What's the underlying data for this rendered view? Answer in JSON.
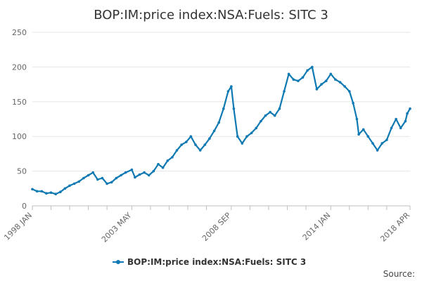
{
  "chart_data": {
    "type": "line",
    "title": "BOP:IM:price index:NSA:Fuels: SITC 3",
    "xlabel": "",
    "ylabel": "",
    "ylim": [
      0,
      250
    ],
    "yticks": [
      0,
      50,
      100,
      150,
      200,
      250
    ],
    "xrange": [
      1998.0,
      2018.25
    ],
    "xtick_labels": [
      {
        "label": "1998 JAN",
        "x": 1998.0
      },
      {
        "label": "2003 MAY",
        "x": 2003.333
      },
      {
        "label": "2008 SEP",
        "x": 2008.667
      },
      {
        "label": "2014 JAN",
        "x": 2014.0
      },
      {
        "label": "2018 APR",
        "x": 2018.25
      }
    ],
    "minor_ticks": [
      1998.0,
      1999.0,
      2000.0,
      2001.0,
      2002.0,
      2003.333,
      2004.333,
      2005.333,
      2006.333,
      2007.333,
      2008.667,
      2009.667,
      2010.667,
      2011.667,
      2012.667,
      2014.0,
      2015.0,
      2016.0,
      2017.0,
      2018.25
    ],
    "series": [
      {
        "name": "BOP:IM:price index:NSA:Fuels: SITC 3",
        "color": "#0e79b2",
        "points": [
          [
            1998.0,
            24
          ],
          [
            1998.25,
            21
          ],
          [
            1998.5,
            21
          ],
          [
            1998.75,
            18
          ],
          [
            1999.0,
            19
          ],
          [
            1999.25,
            17
          ],
          [
            1999.5,
            20
          ],
          [
            1999.75,
            25
          ],
          [
            2000.0,
            29
          ],
          [
            2000.25,
            32
          ],
          [
            2000.5,
            35
          ],
          [
            2000.75,
            40
          ],
          [
            2001.0,
            44
          ],
          [
            2001.25,
            48
          ],
          [
            2001.5,
            38
          ],
          [
            2001.75,
            40
          ],
          [
            2002.0,
            32
          ],
          [
            2002.25,
            34
          ],
          [
            2002.5,
            40
          ],
          [
            2002.75,
            44
          ],
          [
            2003.0,
            48
          ],
          [
            2003.333,
            52
          ],
          [
            2003.5,
            41
          ],
          [
            2003.75,
            45
          ],
          [
            2004.0,
            48
          ],
          [
            2004.25,
            44
          ],
          [
            2004.5,
            50
          ],
          [
            2004.75,
            60
          ],
          [
            2005.0,
            55
          ],
          [
            2005.25,
            65
          ],
          [
            2005.5,
            70
          ],
          [
            2005.75,
            80
          ],
          [
            2006.0,
            88
          ],
          [
            2006.25,
            92
          ],
          [
            2006.5,
            100
          ],
          [
            2006.75,
            88
          ],
          [
            2007.0,
            80
          ],
          [
            2007.25,
            88
          ],
          [
            2007.5,
            97
          ],
          [
            2007.75,
            108
          ],
          [
            2008.0,
            120
          ],
          [
            2008.25,
            140
          ],
          [
            2008.5,
            165
          ],
          [
            2008.667,
            172
          ],
          [
            2008.8,
            140
          ],
          [
            2009.0,
            100
          ],
          [
            2009.25,
            90
          ],
          [
            2009.5,
            100
          ],
          [
            2009.75,
            105
          ],
          [
            2010.0,
            112
          ],
          [
            2010.25,
            122
          ],
          [
            2010.5,
            130
          ],
          [
            2010.75,
            135
          ],
          [
            2011.0,
            130
          ],
          [
            2011.25,
            140
          ],
          [
            2011.5,
            165
          ],
          [
            2011.75,
            190
          ],
          [
            2012.0,
            182
          ],
          [
            2012.25,
            180
          ],
          [
            2012.5,
            185
          ],
          [
            2012.75,
            195
          ],
          [
            2013.0,
            200
          ],
          [
            2013.25,
            168
          ],
          [
            2013.5,
            175
          ],
          [
            2013.75,
            180
          ],
          [
            2014.0,
            190
          ],
          [
            2014.25,
            182
          ],
          [
            2014.5,
            178
          ],
          [
            2014.75,
            172
          ],
          [
            2015.0,
            165
          ],
          [
            2015.2,
            148
          ],
          [
            2015.4,
            125
          ],
          [
            2015.5,
            103
          ],
          [
            2015.75,
            110
          ],
          [
            2016.0,
            100
          ],
          [
            2016.25,
            90
          ],
          [
            2016.5,
            80
          ],
          [
            2016.75,
            90
          ],
          [
            2017.0,
            95
          ],
          [
            2017.25,
            112
          ],
          [
            2017.5,
            125
          ],
          [
            2017.75,
            112
          ],
          [
            2018.0,
            122
          ],
          [
            2018.1,
            133
          ],
          [
            2018.25,
            140
          ]
        ]
      }
    ],
    "legend": "bottom-center",
    "grid": true
  },
  "footer": {
    "source_label": "Source:"
  }
}
